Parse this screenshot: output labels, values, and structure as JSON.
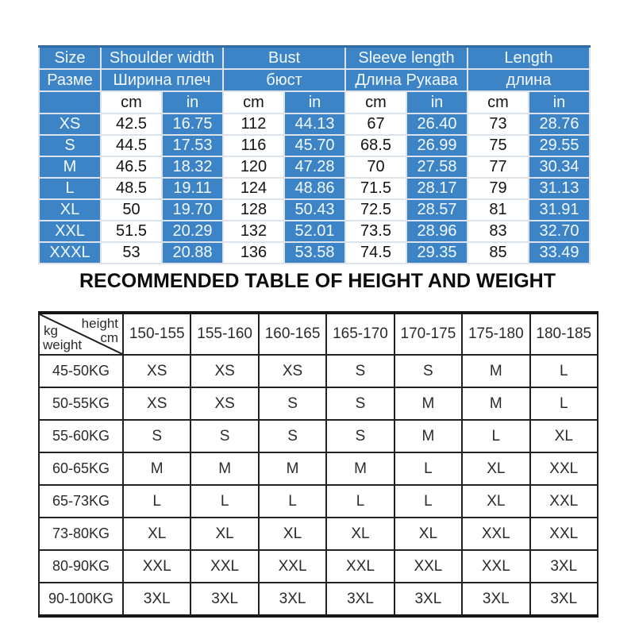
{
  "colors": {
    "table_blue": "#3d84c6",
    "blue_top_border": "#2f6aa5",
    "grid_light": "#dde3ea",
    "dark_border": "#222222",
    "text_dark": "#131313",
    "text_on_blue": "#f2f8fd"
  },
  "middle_title": "RECOMMENDED TABLE OF HEIGHT AND WEIGHT",
  "chart_data": [
    {
      "type": "table",
      "name": "size-measurements",
      "header_groups": [
        {
          "en": "Size",
          "ru": "Разме"
        },
        {
          "en": "Shoulder width",
          "ru": "Ширина плеч"
        },
        {
          "en": "Bust",
          "ru": "бюст"
        },
        {
          "en": "Sleeve length",
          "ru": "Длина Рукава"
        },
        {
          "en": "Length",
          "ru": "длина"
        }
      ],
      "units": [
        "cm",
        "in"
      ],
      "rows": [
        [
          "XS",
          "42.5",
          "16.75",
          "112",
          "44.13",
          "67",
          "26.40",
          "73",
          "28.76"
        ],
        [
          "S",
          "44.5",
          "17.53",
          "116",
          "45.70",
          "68.5",
          "26.99",
          "75",
          "29.55"
        ],
        [
          "M",
          "46.5",
          "18.32",
          "120",
          "47.28",
          "70",
          "27.58",
          "77",
          "30.34"
        ],
        [
          "L",
          "48.5",
          "19.11",
          "124",
          "48.86",
          "71.5",
          "28.17",
          "79",
          "31.13"
        ],
        [
          "XL",
          "50",
          "19.70",
          "128",
          "50.43",
          "72.5",
          "28.57",
          "81",
          "31.91"
        ],
        [
          "XXL",
          "51.5",
          "20.29",
          "132",
          "52.01",
          "73.5",
          "28.96",
          "83",
          "32.70"
        ],
        [
          "XXXL",
          "53",
          "20.88",
          "136",
          "53.58",
          "74.5",
          "29.35",
          "85",
          "33.49"
        ]
      ]
    },
    {
      "type": "table",
      "name": "height-weight-recommendation",
      "title": "RECOMMENDED TABLE OF HEIGHT AND WEIGHT",
      "corner": {
        "top": "height",
        "top_unit": "cm",
        "left": "kg",
        "left_label": "weight"
      },
      "columns": [
        "150-155",
        "155-160",
        "160-165",
        "165-170",
        "170-175",
        "175-180",
        "180-185"
      ],
      "rows": [
        [
          "45-50KG",
          "XS",
          "XS",
          "XS",
          "S",
          "S",
          "M",
          "L"
        ],
        [
          "50-55KG",
          "XS",
          "XS",
          "S",
          "S",
          "M",
          "M",
          "L"
        ],
        [
          "55-60KG",
          "S",
          "S",
          "S",
          "S",
          "M",
          "L",
          "XL"
        ],
        [
          "60-65KG",
          "M",
          "M",
          "M",
          "M",
          "L",
          "XL",
          "XXL"
        ],
        [
          "65-73KG",
          "L",
          "L",
          "L",
          "L",
          "L",
          "XL",
          "XXL"
        ],
        [
          "73-80KG",
          "XL",
          "XL",
          "XL",
          "XL",
          "XL",
          "XXL",
          "XXL"
        ],
        [
          "80-90KG",
          "XXL",
          "XXL",
          "XXL",
          "XXL",
          "XXL",
          "XXL",
          "3XL"
        ],
        [
          "90-100KG",
          "3XL",
          "3XL",
          "3XL",
          "3XL",
          "3XL",
          "3XL",
          "3XL"
        ]
      ]
    }
  ]
}
